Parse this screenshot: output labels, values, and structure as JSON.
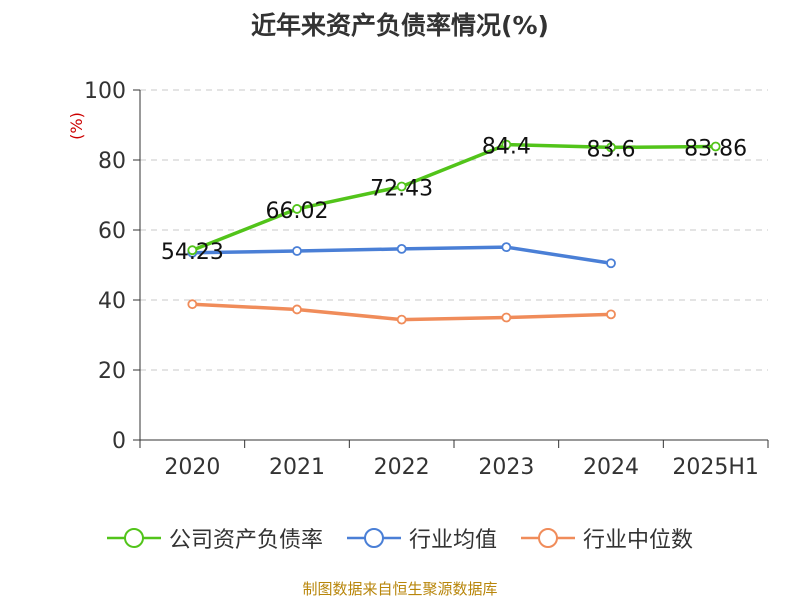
{
  "chart_data": {
    "type": "line",
    "title": "近年来资产负债率情况(%)",
    "ylabel": "(%)",
    "xlabel": "",
    "categories": [
      "2020",
      "2021",
      "2022",
      "2023",
      "2024",
      "2025H1"
    ],
    "ylim": [
      0,
      100
    ],
    "yticks": [
      0,
      20,
      40,
      60,
      80,
      100
    ],
    "grid": true,
    "legend_position": "bottom",
    "series": [
      {
        "name": "公司资产负债率",
        "color": "#52c41a",
        "values": [
          54.23,
          66.02,
          72.43,
          84.4,
          83.6,
          83.86
        ],
        "labels": [
          "54.23",
          "66.02",
          "72.43",
          "84.4",
          "83.6",
          "83.86"
        ]
      },
      {
        "name": "行业均值",
        "color": "#4a7fd6",
        "values": [
          53.5,
          54.0,
          54.6,
          55.1,
          50.5,
          null
        ]
      },
      {
        "name": "行业中位数",
        "color": "#f08c5a",
        "values": [
          38.8,
          37.3,
          34.4,
          35.0,
          35.9,
          null
        ]
      }
    ]
  },
  "ylabel_color": "#cc0000",
  "source": {
    "text": "制图数据来自恒生聚源数据库",
    "color": "#b8860b"
  }
}
